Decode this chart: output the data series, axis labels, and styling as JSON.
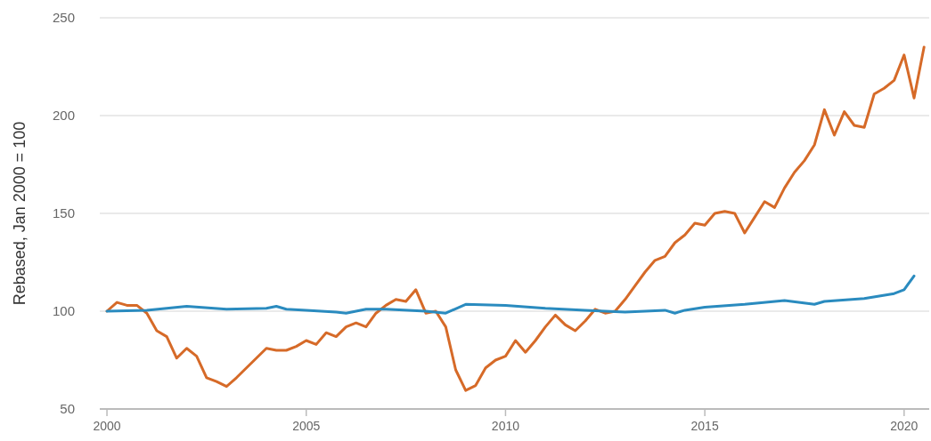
{
  "chart_data": {
    "type": "line",
    "ylabel": "Rebased, Jan 2000 = 100",
    "xlim": [
      1999.82,
      2020.63
    ],
    "xticks": [
      2000,
      2005,
      2010,
      2015,
      2020
    ],
    "ylim": [
      50,
      250
    ],
    "yticks": [
      50,
      100,
      150,
      200,
      250
    ],
    "grid": "y",
    "series": [
      {
        "color": "#d66a28",
        "x": [
          2000,
          2000.25,
          2000.5,
          2000.75,
          2001,
          2001.25,
          2001.5,
          2001.75,
          2002,
          2002.25,
          2002.5,
          2002.75,
          2003,
          2003.25,
          2003.5,
          2003.75,
          2004,
          2004.25,
          2004.5,
          2004.75,
          2005,
          2005.25,
          2005.5,
          2005.75,
          2006,
          2006.25,
          2006.5,
          2006.75,
          2007,
          2007.25,
          2007.5,
          2007.75,
          2008,
          2008.25,
          2008.5,
          2008.75,
          2009,
          2009.25,
          2009.5,
          2009.75,
          2010,
          2010.25,
          2010.5,
          2010.75,
          2011,
          2011.25,
          2011.5,
          2011.75,
          2012,
          2012.25,
          2012.5,
          2012.75,
          2013,
          2013.25,
          2013.5,
          2013.75,
          2014,
          2014.25,
          2014.5,
          2014.75,
          2015,
          2015.25,
          2015.5,
          2015.75,
          2016,
          2016.25,
          2016.5,
          2016.75,
          2017,
          2017.25,
          2017.5,
          2017.75,
          2018,
          2018.25,
          2018.5,
          2018.75,
          2019,
          2019.25,
          2019.5,
          2019.75,
          2020,
          2020.25,
          2020.5
        ],
        "values": [
          100,
          104.5,
          103,
          103,
          99,
          90,
          87,
          76,
          81,
          77,
          66,
          64,
          61.5,
          66,
          71,
          76,
          81,
          80,
          80,
          82,
          85,
          83,
          89,
          87,
          92,
          94,
          92,
          99,
          103,
          106,
          105,
          111,
          99,
          100,
          92,
          70,
          59.5,
          62,
          71,
          75,
          77,
          85,
          79,
          85,
          92,
          98,
          93,
          90,
          95,
          101,
          99,
          100,
          106,
          113,
          120,
          126,
          128,
          135,
          139,
          145,
          144,
          150,
          151,
          150,
          140,
          148,
          156,
          153,
          163,
          171,
          177,
          185,
          203,
          190,
          202,
          195,
          194,
          211,
          214,
          218,
          231,
          209,
          235
        ]
      },
      {
        "color": "#2a8bbf",
        "x": [
          2000,
          2001,
          2002,
          2003,
          2004,
          2004.25,
          2004.5,
          2005,
          2005.75,
          2006,
          2006.5,
          2007,
          2008,
          2008.5,
          2009,
          2010,
          2011,
          2012,
          2013,
          2014,
          2014.25,
          2014.5,
          2015,
          2016,
          2017,
          2017.75,
          2018,
          2019,
          2019.75,
          2020,
          2020.25
        ],
        "values": [
          100,
          100.5,
          102.5,
          101,
          101.5,
          102.5,
          101,
          100.5,
          99.5,
          99,
          101,
          101,
          100,
          99,
          103.5,
          103,
          101.5,
          100.5,
          99.5,
          100.5,
          99,
          100.5,
          102,
          103.5,
          105.5,
          103.5,
          105,
          106.5,
          109,
          111,
          118
        ]
      }
    ]
  }
}
